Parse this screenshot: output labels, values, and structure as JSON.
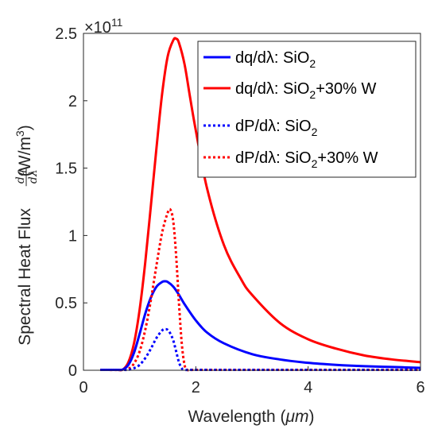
{
  "chart_data": {
    "type": "line",
    "xlabel_prefix": "Wavelength (",
    "xlabel_unit": "μm",
    "xlabel_suffix": ")",
    "ylabel_prefix": "Spectral Heat Flux ",
    "ylabel_frac_num": "dq",
    "ylabel_frac_den": "dλ",
    "ylabel_suffix": " (W/m",
    "ylabel_sup": "3",
    "ylabel_close": ")",
    "y_multiplier_base": "×10",
    "y_multiplier_exp": "11",
    "xlim": [
      0,
      6
    ],
    "ylim": [
      0,
      2.5
    ],
    "xticks": [
      0,
      2,
      4,
      6
    ],
    "xtick_labels": [
      "0",
      "2",
      "4",
      "6"
    ],
    "yticks": [
      0,
      0.5,
      1,
      1.5,
      2,
      2.5
    ],
    "ytick_labels": [
      "0",
      "0.5",
      "1",
      "1.5",
      "2",
      "2.5"
    ],
    "grid": false,
    "legend_position": "top-right",
    "series": [
      {
        "name": "dq/dλ: SiO2",
        "legend_main": "dq/dλ: SiO",
        "legend_sub": "2",
        "legend_tail": "",
        "color": "#0000ff",
        "style": "solid",
        "x": [
          0.3,
          0.6,
          0.7,
          0.8,
          0.9,
          1.0,
          1.1,
          1.2,
          1.3,
          1.4,
          1.45,
          1.5,
          1.6,
          1.7,
          1.8,
          2.0,
          2.2,
          2.5,
          3.0,
          3.5,
          4.0,
          4.5,
          5.0,
          5.5,
          6.0
        ],
        "y": [
          0,
          0,
          0.005,
          0.04,
          0.13,
          0.27,
          0.42,
          0.54,
          0.62,
          0.655,
          0.66,
          0.655,
          0.62,
          0.56,
          0.49,
          0.37,
          0.28,
          0.2,
          0.12,
          0.08,
          0.055,
          0.04,
          0.03,
          0.024,
          0.018
        ]
      },
      {
        "name": "dq/dλ: SiO2+30% W",
        "legend_main": "dq/dλ: SiO",
        "legend_sub": "2",
        "legend_tail": "+30% W",
        "color": "#ff0000",
        "style": "solid",
        "x": [
          0.3,
          0.6,
          0.7,
          0.8,
          0.9,
          1.0,
          1.1,
          1.2,
          1.3,
          1.4,
          1.5,
          1.6,
          1.65,
          1.7,
          1.8,
          1.9,
          2.0,
          2.2,
          2.5,
          2.8,
          3.0,
          3.5,
          4.0,
          4.5,
          5.0,
          5.5,
          6.0
        ],
        "y": [
          0,
          0,
          0.005,
          0.06,
          0.2,
          0.45,
          0.8,
          1.22,
          1.65,
          2.05,
          2.33,
          2.45,
          2.46,
          2.43,
          2.27,
          2.02,
          1.78,
          1.35,
          0.93,
          0.68,
          0.56,
          0.35,
          0.23,
          0.16,
          0.11,
          0.08,
          0.06
        ]
      },
      {
        "name": "dP/dλ: SiO2",
        "legend_main": "dP/dλ: SiO",
        "legend_sub": "2",
        "legend_tail": "",
        "color": "#0000ff",
        "style": "dotted",
        "x": [
          0.3,
          0.7,
          0.8,
          0.9,
          1.0,
          1.1,
          1.2,
          1.3,
          1.4,
          1.45,
          1.5,
          1.55,
          1.6,
          1.65,
          1.7,
          1.75,
          1.8,
          2.0,
          3.0,
          4.0,
          5.0,
          6.0
        ],
        "y": [
          0,
          0,
          0.003,
          0.015,
          0.04,
          0.09,
          0.16,
          0.24,
          0.295,
          0.305,
          0.3,
          0.27,
          0.22,
          0.14,
          0.06,
          0.015,
          0,
          0,
          0,
          0,
          0,
          0
        ]
      },
      {
        "name": "dP/dλ: SiO2+30% W",
        "legend_main": "dP/dλ: SiO",
        "legend_sub": "2",
        "legend_tail": "+30% W",
        "color": "#ff0000",
        "style": "dotted",
        "x": [
          0.3,
          0.7,
          0.8,
          0.9,
          1.0,
          1.1,
          1.2,
          1.3,
          1.4,
          1.5,
          1.55,
          1.6,
          1.65,
          1.7,
          1.75,
          1.8,
          1.85,
          2.0,
          3.0,
          4.0,
          5.0,
          6.0
        ],
        "y": [
          0,
          0,
          0.01,
          0.05,
          0.14,
          0.3,
          0.52,
          0.78,
          1.02,
          1.17,
          1.19,
          1.1,
          0.85,
          0.5,
          0.2,
          0.04,
          0,
          0,
          0,
          0,
          0,
          0
        ]
      }
    ]
  }
}
